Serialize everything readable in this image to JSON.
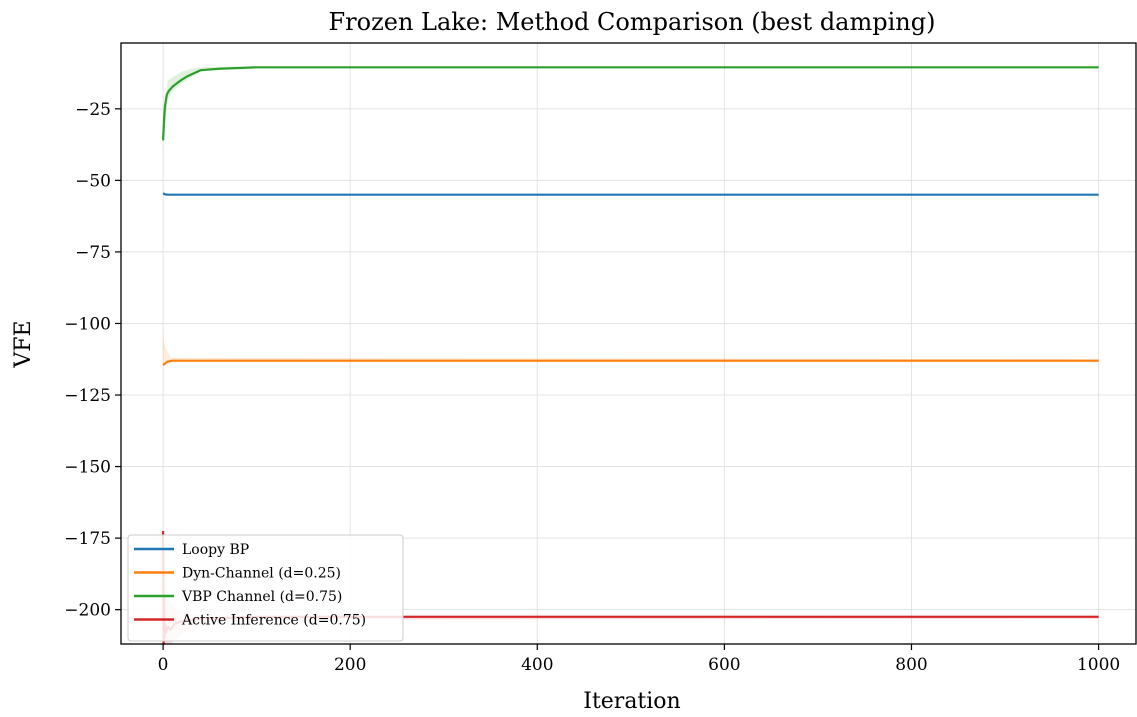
{
  "chart_data": {
    "type": "line",
    "title": "Frozen Lake: Method Comparison (best damping)",
    "xlabel": "Iteration",
    "ylabel": "VFE",
    "xlim": [
      -45,
      1040
    ],
    "ylim": [
      -212,
      -2
    ],
    "xticks": [
      0,
      200,
      400,
      600,
      800,
      1000
    ],
    "yticks": [
      -25,
      -50,
      -75,
      -100,
      -125,
      -150,
      -175,
      -200
    ],
    "grid": true,
    "legend_position": "lower-left",
    "series": [
      {
        "name": "Loopy BP",
        "color": "#1f77b4",
        "x": [
          0,
          2,
          5,
          1000
        ],
        "y": [
          -54.5,
          -54.9,
          -55.0,
          -55.0
        ],
        "band": null
      },
      {
        "name": "Dyn-Channel (d=0.25)",
        "color": "#ff7f0e",
        "x": [
          0,
          2,
          5,
          10,
          1000
        ],
        "y": [
          -114.5,
          -114.0,
          -113.3,
          -113.0,
          -113.0
        ],
        "band": {
          "x": [
            0,
            2,
            5,
            8,
            1000
          ],
          "lower": [
            -114.5,
            -114.5,
            -114,
            -113.5,
            -113.5
          ],
          "upper": [
            -104,
            -108,
            -110,
            -112,
            -112.5
          ]
        }
      },
      {
        "name": "VBP Channel (d=0.75)",
        "color": "#2ca02c",
        "x": [
          0,
          1,
          2,
          4,
          6,
          10,
          15,
          20,
          25,
          30,
          40,
          60,
          100,
          200,
          1000
        ],
        "y": [
          -36.0,
          -29.0,
          -24.0,
          -20.0,
          -18.8,
          -17.3,
          -16.0,
          -14.8,
          -13.8,
          -13.0,
          -11.5,
          -11.0,
          -10.5,
          -10.5,
          -10.5
        ],
        "band": {
          "x": [
            0,
            5,
            10,
            20,
            30,
            40,
            60,
            100,
            1000
          ],
          "lower": [
            -38,
            -22,
            -19,
            -16,
            -14,
            -12,
            -11.3,
            -10.8,
            -10.7
          ],
          "upper": [
            -30,
            -15,
            -14,
            -12,
            -11,
            -10.5,
            -10.3,
            -10.3,
            -10.3
          ]
        }
      },
      {
        "name": "Active Inference (d=0.75)",
        "color": "#d62728",
        "x": [
          0,
          0.5,
          1,
          1.5,
          2,
          3,
          5,
          8,
          12,
          20,
          30,
          40,
          60,
          100,
          1000
        ],
        "y": [
          -172.5,
          -212.0,
          -195.0,
          -210.0,
          -205.0,
          -208.0,
          -206.0,
          -207.0,
          -205.0,
          -204.0,
          -203.5,
          -203.0,
          -203.0,
          -202.5,
          -202.5
        ],
        "band": {
          "x": [
            0,
            3,
            8,
            15,
            25,
            40,
            100,
            1000
          ],
          "lower": [
            -212,
            -212,
            -212,
            -210,
            -207,
            -205,
            -203.5,
            -203.2
          ],
          "upper": [
            -172,
            -190,
            -198,
            -200,
            -201,
            -202,
            -202,
            -202
          ]
        }
      }
    ]
  }
}
